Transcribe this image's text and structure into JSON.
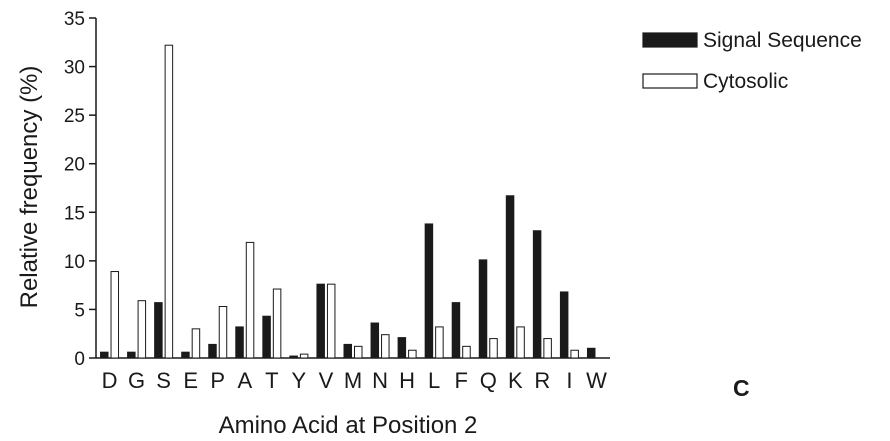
{
  "chart_data": {
    "type": "bar",
    "categories": [
      "D",
      "G",
      "S",
      "E",
      "P",
      "A",
      "T",
      "Y",
      "V",
      "M",
      "N",
      "H",
      "L",
      "F",
      "Q",
      "K",
      "R",
      "I",
      "W"
    ],
    "series": [
      {
        "name": "Signal Sequence",
        "color": "#1a1a1a",
        "fill": "solid",
        "values": [
          0.6,
          0.6,
          5.7,
          0.6,
          1.4,
          3.2,
          4.3,
          0.2,
          7.6,
          1.4,
          3.6,
          2.1,
          13.8,
          5.7,
          10.1,
          16.7,
          13.1,
          6.8,
          1.0
        ]
      },
      {
        "name": "Cytosolic",
        "color": "#ffffff",
        "fill": "outline",
        "values": [
          8.9,
          5.9,
          32.2,
          3.0,
          5.3,
          11.9,
          7.1,
          0.4,
          7.6,
          1.2,
          2.4,
          0.8,
          3.2,
          1.2,
          2.0,
          3.2,
          2.0,
          0.8,
          0.0
        ]
      }
    ],
    "xlabel": "Amino Acid at Position 2",
    "ylabel": "Relative frequency (%)",
    "ylim": [
      0,
      35
    ],
    "yticks": [
      0,
      5,
      10,
      15,
      20,
      25,
      30,
      35
    ],
    "grid": false,
    "legend_position": "top-right",
    "panel_label": "C"
  }
}
